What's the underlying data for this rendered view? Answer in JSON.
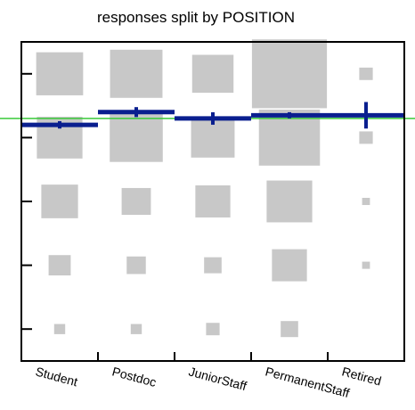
{
  "title": "responses split by POSITION",
  "chart_data": {
    "type": "box-matrix",
    "title": "responses split by POSITION",
    "categories": [
      "Student",
      "Postdoc",
      "JuniorStaff",
      "PermanentStaff",
      "Retired"
    ],
    "response_levels": 5,
    "ylim": [
      0.5,
      5.5
    ],
    "reference_line": 4.3,
    "cells": [
      [
        0.36,
        0.34,
        0.22,
        0.08,
        0.02
      ],
      [
        0.45,
        0.46,
        0.14,
        0.06,
        0.02
      ],
      [
        0.28,
        0.31,
        0.2,
        0.05,
        0.03
      ],
      [
        0.92,
        0.61,
        0.34,
        0.2,
        0.05
      ],
      [
        0.03,
        0.03,
        0.01,
        0.01,
        0.0
      ]
    ],
    "means": [
      4.2,
      4.4,
      4.3,
      4.35,
      4.35
    ],
    "errors": [
      0.03,
      0.05,
      0.07,
      0.02,
      0.18
    ],
    "colors": {
      "box": "#c8c8c8",
      "mean": "#0a1f8f",
      "reference": "#39c939",
      "frame": "#000000"
    }
  }
}
